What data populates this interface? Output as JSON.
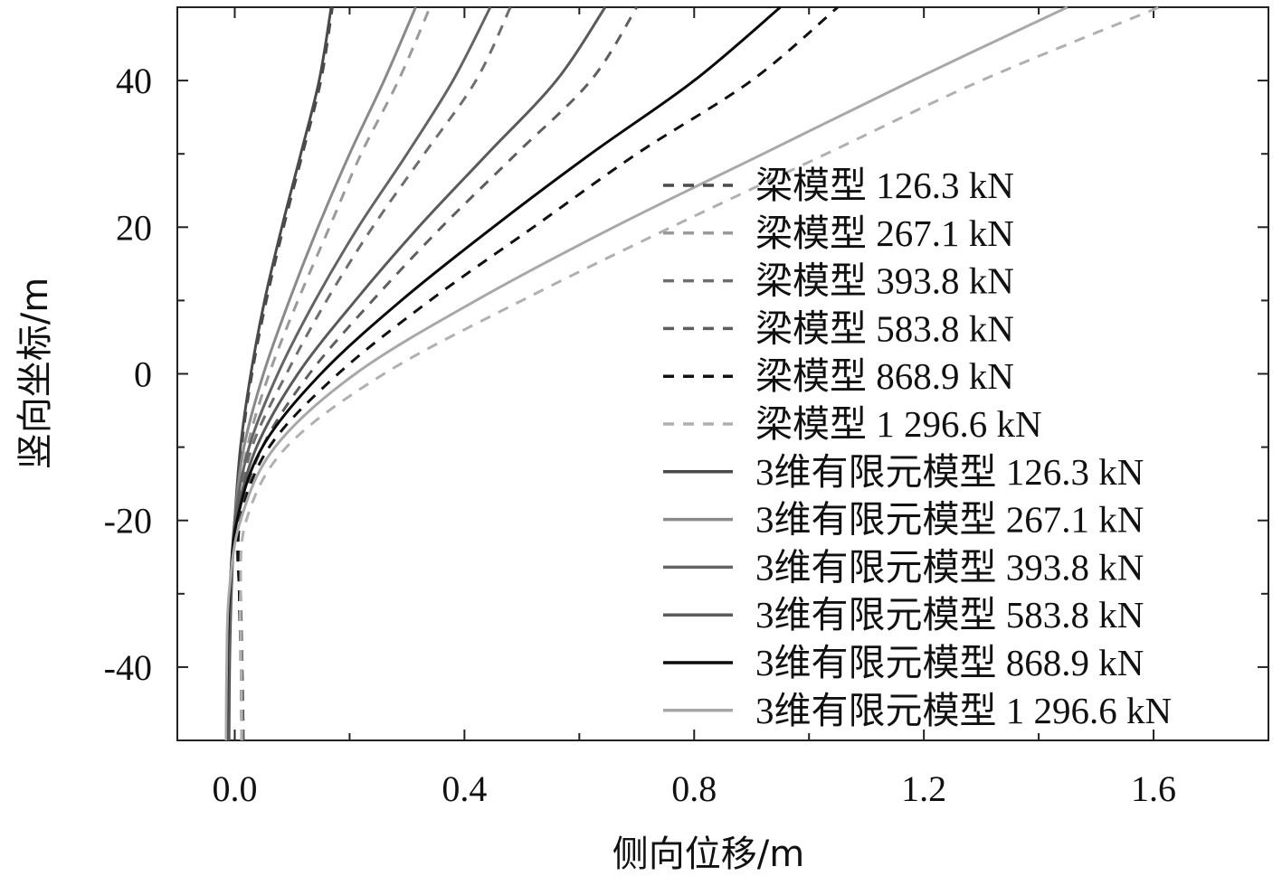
{
  "chart_data": {
    "type": "line",
    "xlabel": "侧向位移/m",
    "ylabel": "竖向坐标/m",
    "xlim": [
      -0.1,
      1.8
    ],
    "ylim": [
      -50,
      50
    ],
    "xticks": [
      0.0,
      0.4,
      0.8,
      1.2,
      1.6
    ],
    "xtick_labels": [
      "0.0",
      "0.4",
      "0.8",
      "1.2",
      "1.6"
    ],
    "yticks": [
      -40,
      -20,
      0,
      20,
      40
    ],
    "ytick_labels": [
      "-40",
      "-20",
      "0",
      "20",
      "40"
    ],
    "grid": false,
    "legend_position": "bottom-right",
    "series": [
      {
        "name": "梁模型 126.3 kN",
        "style": "dashed",
        "color": "#4a4a4a",
        "points": [
          [
            0.015,
            -50
          ],
          [
            0.013,
            -40
          ],
          [
            0.01,
            -30
          ],
          [
            0.005,
            -20
          ],
          [
            0.012,
            -10
          ],
          [
            0.03,
            0
          ],
          [
            0.055,
            10
          ],
          [
            0.085,
            20
          ],
          [
            0.118,
            30
          ],
          [
            0.15,
            40
          ],
          [
            0.17,
            50
          ]
        ]
      },
      {
        "name": "梁模型 267.1 kN",
        "style": "dashed",
        "color": "#9a9a9a",
        "points": [
          [
            0.013,
            -50
          ],
          [
            0.012,
            -40
          ],
          [
            0.009,
            -30
          ],
          [
            0.005,
            -20
          ],
          [
            0.022,
            -10
          ],
          [
            0.06,
            0
          ],
          [
            0.11,
            10
          ],
          [
            0.165,
            20
          ],
          [
            0.22,
            30
          ],
          [
            0.285,
            40
          ],
          [
            0.34,
            50
          ]
        ]
      },
      {
        "name": "梁模型 393.8 kN",
        "style": "dashed",
        "color": "#6e6e6e",
        "points": [
          [
            0.012,
            -50
          ],
          [
            0.011,
            -40
          ],
          [
            0.008,
            -30
          ],
          [
            0.005,
            -20
          ],
          [
            0.03,
            -10
          ],
          [
            0.09,
            0
          ],
          [
            0.16,
            10
          ],
          [
            0.24,
            20
          ],
          [
            0.33,
            30
          ],
          [
            0.42,
            40
          ],
          [
            0.48,
            50
          ]
        ]
      },
      {
        "name": "梁模型 583.8 kN",
        "style": "dashed",
        "color": "#5e5e5e",
        "points": [
          [
            0.012,
            -50
          ],
          [
            0.011,
            -40
          ],
          [
            0.008,
            -30
          ],
          [
            0.008,
            -20
          ],
          [
            0.048,
            -10
          ],
          [
            0.13,
            0
          ],
          [
            0.24,
            10
          ],
          [
            0.36,
            20
          ],
          [
            0.49,
            30
          ],
          [
            0.62,
            40
          ],
          [
            0.7,
            50
          ]
        ]
      },
      {
        "name": "梁模型 868.9 kN",
        "style": "dashed",
        "color": "#111111",
        "points": [
          [
            0.012,
            -50
          ],
          [
            0.011,
            -40
          ],
          [
            0.008,
            -30
          ],
          [
            0.01,
            -20
          ],
          [
            0.06,
            -10
          ],
          [
            0.18,
            0
          ],
          [
            0.34,
            10
          ],
          [
            0.52,
            20
          ],
          [
            0.7,
            30
          ],
          [
            0.9,
            40
          ],
          [
            1.05,
            50
          ]
        ]
      },
      {
        "name": "梁模型 1 296.6 kN",
        "style": "dashed",
        "color": "#b0b0b0",
        "points": [
          [
            0.012,
            -50
          ],
          [
            0.011,
            -40
          ],
          [
            0.01,
            -30
          ],
          [
            0.02,
            -20
          ],
          [
            0.09,
            -10
          ],
          [
            0.26,
            0
          ],
          [
            0.5,
            10
          ],
          [
            0.76,
            20
          ],
          [
            1.03,
            30
          ],
          [
            1.3,
            40
          ],
          [
            1.61,
            50
          ]
        ]
      },
      {
        "name": "3维有限元模型 126.3 kN",
        "style": "solid",
        "color": "#4a4a4a",
        "points": [
          [
            -0.01,
            -50
          ],
          [
            -0.009,
            -40
          ],
          [
            -0.006,
            -30
          ],
          [
            0.0,
            -20
          ],
          [
            0.01,
            -10
          ],
          [
            0.028,
            0
          ],
          [
            0.052,
            10
          ],
          [
            0.082,
            20
          ],
          [
            0.115,
            30
          ],
          [
            0.147,
            40
          ],
          [
            0.168,
            50
          ]
        ]
      },
      {
        "name": "3维有限元模型 267.1 kN",
        "style": "solid",
        "color": "#8a8a8a",
        "points": [
          [
            -0.012,
            -50
          ],
          [
            -0.011,
            -40
          ],
          [
            -0.007,
            -30
          ],
          [
            0.0,
            -20
          ],
          [
            0.016,
            -10
          ],
          [
            0.05,
            0
          ],
          [
            0.095,
            10
          ],
          [
            0.145,
            20
          ],
          [
            0.2,
            30
          ],
          [
            0.26,
            40
          ],
          [
            0.315,
            50
          ]
        ]
      },
      {
        "name": "3维有限元模型 393.8 kN",
        "style": "solid",
        "color": "#646464",
        "points": [
          [
            -0.012,
            -50
          ],
          [
            -0.011,
            -40
          ],
          [
            -0.007,
            -30
          ],
          [
            0.0,
            -20
          ],
          [
            0.025,
            -10
          ],
          [
            0.075,
            0
          ],
          [
            0.14,
            10
          ],
          [
            0.215,
            20
          ],
          [
            0.3,
            30
          ],
          [
            0.38,
            40
          ],
          [
            0.445,
            50
          ]
        ]
      },
      {
        "name": "3维有限元模型 583.8 kN",
        "style": "solid",
        "color": "#5a5a5a",
        "points": [
          [
            -0.014,
            -50
          ],
          [
            -0.013,
            -40
          ],
          [
            -0.008,
            -30
          ],
          [
            0.002,
            -20
          ],
          [
            0.038,
            -10
          ],
          [
            0.11,
            0
          ],
          [
            0.21,
            10
          ],
          [
            0.32,
            20
          ],
          [
            0.44,
            30
          ],
          [
            0.56,
            40
          ],
          [
            0.645,
            50
          ]
        ]
      },
      {
        "name": "3维有限元模型 868.9 kN",
        "style": "solid",
        "color": "#0a0a0a",
        "points": [
          [
            -0.014,
            -50
          ],
          [
            -0.013,
            -40
          ],
          [
            -0.009,
            -30
          ],
          [
            0.004,
            -20
          ],
          [
            0.048,
            -10
          ],
          [
            0.15,
            0
          ],
          [
            0.29,
            10
          ],
          [
            0.45,
            20
          ],
          [
            0.62,
            30
          ],
          [
            0.8,
            40
          ],
          [
            0.95,
            50
          ]
        ]
      },
      {
        "name": "3维有限元模型 1 296.6 kN",
        "style": "solid",
        "color": "#a8a8a8",
        "points": [
          [
            -0.015,
            -50
          ],
          [
            -0.014,
            -40
          ],
          [
            -0.01,
            -30
          ],
          [
            0.01,
            -20
          ],
          [
            0.07,
            -10
          ],
          [
            0.21,
            0
          ],
          [
            0.42,
            10
          ],
          [
            0.66,
            20
          ],
          [
            0.92,
            30
          ],
          [
            1.18,
            40
          ],
          [
            1.45,
            50
          ]
        ]
      }
    ]
  }
}
